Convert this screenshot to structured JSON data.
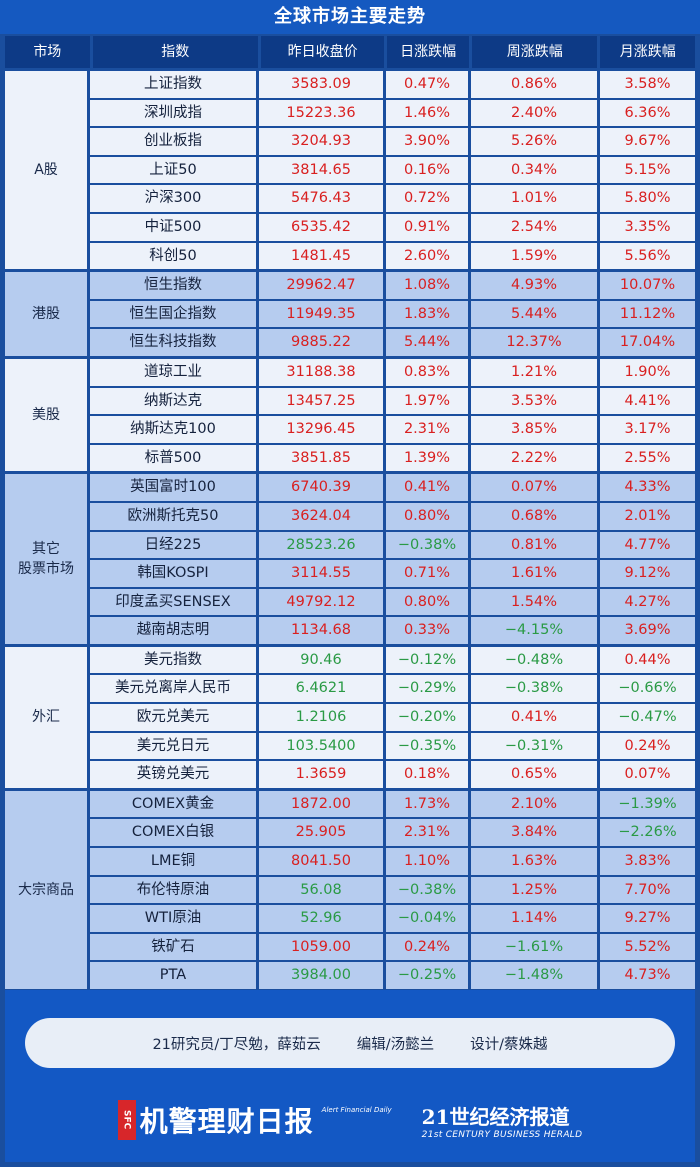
{
  "title": "全球市场主要走势",
  "headers": [
    "市场",
    "指数",
    "昨日收盘价",
    "日涨跌幅",
    "周涨跌幅",
    "月涨跌幅"
  ],
  "colors": {
    "up": "#d92020",
    "down": "#2a9a45"
  },
  "groups": [
    {
      "market": "A股",
      "shade": "light",
      "rows": [
        {
          "name": "上证指数",
          "close": "3583.09",
          "day": "0.47%",
          "week": "0.86%",
          "month": "3.58%"
        },
        {
          "name": "深圳成指",
          "close": "15223.36",
          "day": "1.46%",
          "week": "2.40%",
          "month": "6.36%"
        },
        {
          "name": "创业板指",
          "close": "3204.93",
          "day": "3.90%",
          "week": "5.26%",
          "month": "9.67%"
        },
        {
          "name": "上证50",
          "close": "3814.65",
          "day": "0.16%",
          "week": "0.34%",
          "month": "5.15%"
        },
        {
          "name": "沪深300",
          "close": "5476.43",
          "day": "0.72%",
          "week": "1.01%",
          "month": "5.80%"
        },
        {
          "name": "中证500",
          "close": "6535.42",
          "day": "0.91%",
          "week": "2.54%",
          "month": "3.35%"
        },
        {
          "name": "科创50",
          "close": "1481.45",
          "day": "2.60%",
          "week": "1.59%",
          "month": "5.56%"
        }
      ]
    },
    {
      "market": "港股",
      "shade": "blue",
      "rows": [
        {
          "name": "恒生指数",
          "close": "29962.47",
          "day": "1.08%",
          "week": "4.93%",
          "month": "10.07%"
        },
        {
          "name": "恒生国企指数",
          "close": "11949.35",
          "day": "1.83%",
          "week": "5.44%",
          "month": "11.12%"
        },
        {
          "name": "恒生科技指数",
          "close": "9885.22",
          "day": "5.44%",
          "week": "12.37%",
          "month": "17.04%"
        }
      ]
    },
    {
      "market": "美股",
      "shade": "light",
      "rows": [
        {
          "name": "道琼工业",
          "close": "31188.38",
          "day": "0.83%",
          "week": "1.21%",
          "month": "1.90%"
        },
        {
          "name": "纳斯达克",
          "close": "13457.25",
          "day": "1.97%",
          "week": "3.53%",
          "month": "4.41%"
        },
        {
          "name": "纳斯达克100",
          "close": "13296.45",
          "day": "2.31%",
          "week": "3.85%",
          "month": "3.17%"
        },
        {
          "name": "标普500",
          "close": "3851.85",
          "day": "1.39%",
          "week": "2.22%",
          "month": "2.55%"
        }
      ]
    },
    {
      "market": "其它\n股票市场",
      "shade": "blue",
      "rows": [
        {
          "name": "英国富时100",
          "close": "6740.39",
          "day": "0.41%",
          "week": "0.07%",
          "month": "4.33%"
        },
        {
          "name": "欧洲斯托克50",
          "close": "3624.04",
          "day": "0.80%",
          "week": "0.68%",
          "month": "2.01%"
        },
        {
          "name": "日经225",
          "close": "28523.26",
          "day": "−0.38%",
          "week": "0.81%",
          "month": "4.77%"
        },
        {
          "name": "韩国KOSPI",
          "close": "3114.55",
          "day": "0.71%",
          "week": "1.61%",
          "month": "9.12%"
        },
        {
          "name": "印度孟买SENSEX",
          "close": "49792.12",
          "day": "0.80%",
          "week": "1.54%",
          "month": "4.27%"
        },
        {
          "name": "越南胡志明",
          "close": "1134.68",
          "day": "0.33%",
          "week": "−4.15%",
          "month": "3.69%"
        }
      ]
    },
    {
      "market": "外汇",
      "shade": "light",
      "rows": [
        {
          "name": "美元指数",
          "close": "90.46",
          "day": "−0.12%",
          "week": "−0.48%",
          "month": "0.44%"
        },
        {
          "name": "美元兑离岸人民币",
          "close": "6.4621",
          "day": "−0.29%",
          "week": "−0.38%",
          "month": "−0.66%"
        },
        {
          "name": "欧元兑美元",
          "close": "1.2106",
          "day": "−0.20%",
          "week": "0.41%",
          "month": "−0.47%"
        },
        {
          "name": "美元兑日元",
          "close": "103.5400",
          "day": "−0.35%",
          "week": "−0.31%",
          "month": "0.24%"
        },
        {
          "name": "英镑兑美元",
          "close": "1.3659",
          "day": "0.18%",
          "week": "0.65%",
          "month": "0.07%"
        }
      ]
    },
    {
      "market": "大宗商品",
      "shade": "blue",
      "rows": [
        {
          "name": "COMEX黄金",
          "close": "1872.00",
          "day": "1.73%",
          "week": "2.10%",
          "month": "−1.39%"
        },
        {
          "name": "COMEX白银",
          "close": "25.905",
          "day": "2.31%",
          "week": "3.84%",
          "month": "−2.26%"
        },
        {
          "name": "LME铜",
          "close": "8041.50",
          "day": "1.10%",
          "week": "1.63%",
          "month": "3.83%"
        },
        {
          "name": "布伦特原油",
          "close": "56.08",
          "closeDir": "down",
          "day": "−0.38%",
          "week": "1.25%",
          "month": "7.70%"
        },
        {
          "name": "WTI原油",
          "close": "52.96",
          "closeDir": "down",
          "day": "−0.04%",
          "week": "1.14%",
          "month": "9.27%"
        },
        {
          "name": "铁矿石",
          "close": "1059.00",
          "day": "0.24%",
          "week": "−1.61%",
          "month": "5.52%"
        },
        {
          "name": "PTA",
          "close": "3984.00",
          "closeDir": "down",
          "day": "−0.25%",
          "week": "−1.48%",
          "month": "4.73%"
        }
      ]
    }
  ],
  "footer": {
    "researcher": "21研究员/丁尽勉，薛茹云",
    "editor": "编辑/汤懿兰",
    "designer": "设计/蔡姝越",
    "logo1_badge": "SFC",
    "logo1_name": "机警理财日报",
    "logo1_en": "Alert Financial Daily",
    "logo2_name": "21世纪经济报道",
    "logo2_en": "21st CENTURY BUSINESS HERALD"
  }
}
